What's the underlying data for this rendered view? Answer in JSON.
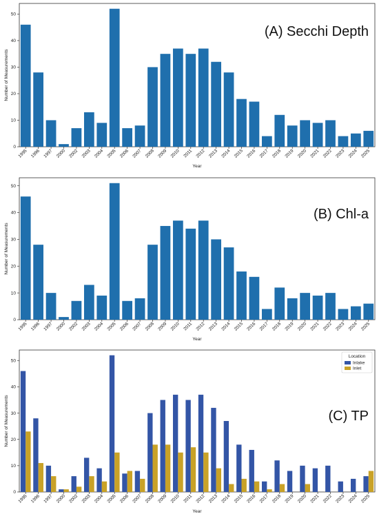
{
  "chart_data": [
    {
      "type": "bar",
      "panel_label": "(A) Secchi Depth",
      "xlabel": "Year",
      "ylabel": "Number of Measurements",
      "ylim": [
        0,
        54
      ],
      "yticks": [
        0,
        10,
        20,
        30,
        40,
        50
      ],
      "grid": false,
      "categories": [
        "1995",
        "1996",
        "1997",
        "2000",
        "2002",
        "2003",
        "2004",
        "2005",
        "2006",
        "2007",
        "2008",
        "2009",
        "2010",
        "2011",
        "2012",
        "2013",
        "2014",
        "2015",
        "2016",
        "2017",
        "2018",
        "2019",
        "2020",
        "2021",
        "2022",
        "2023",
        "2024",
        "2025"
      ],
      "series": [
        {
          "values": [
            46,
            28,
            10,
            1,
            7,
            13,
            9,
            52,
            7,
            8,
            30,
            35,
            37,
            35,
            37,
            32,
            28,
            18,
            17,
            4,
            12,
            8,
            10,
            9,
            10,
            4,
            5,
            6
          ],
          "color": "#1f6fad"
        }
      ]
    },
    {
      "type": "bar",
      "panel_label": "(B) Chl-a",
      "xlabel": "Year",
      "ylabel": "Number of Measurements",
      "ylim": [
        0,
        53
      ],
      "yticks": [
        0,
        10,
        20,
        30,
        40,
        50
      ],
      "grid": false,
      "categories": [
        "1995",
        "1996",
        "1997",
        "2000",
        "2002",
        "2003",
        "2004",
        "2005",
        "2006",
        "2007",
        "2008",
        "2009",
        "2010",
        "2011",
        "2012",
        "2013",
        "2014",
        "2015",
        "2016",
        "2017",
        "2018",
        "2019",
        "2020",
        "2021",
        "2022",
        "2023",
        "2024",
        "2025"
      ],
      "series": [
        {
          "values": [
            46,
            28,
            10,
            1,
            7,
            13,
            9,
            51,
            7,
            8,
            28,
            35,
            37,
            34,
            37,
            30,
            27,
            18,
            16,
            4,
            12,
            8,
            10,
            9,
            10,
            4,
            5,
            6
          ],
          "color": "#1f6fad"
        }
      ]
    },
    {
      "type": "bar",
      "panel_label": "(C) TP",
      "xlabel": "Year",
      "ylabel": "Number of Measurements",
      "ylim": [
        0,
        54
      ],
      "yticks": [
        0,
        10,
        20,
        30,
        40,
        50
      ],
      "grid": false,
      "legend": {
        "title": "Location",
        "placement": "top-right"
      },
      "categories": [
        "1995",
        "1996",
        "1997",
        "2000",
        "2002",
        "2003",
        "2004",
        "2005",
        "2006",
        "2007",
        "2008",
        "2009",
        "2010",
        "2011",
        "2012",
        "2013",
        "2014",
        "2015",
        "2016",
        "2017",
        "2018",
        "2019",
        "2020",
        "2021",
        "2022",
        "2023",
        "2024",
        "2025"
      ],
      "series": [
        {
          "name": "Inlake",
          "values": [
            46,
            28,
            10,
            1,
            6,
            13,
            9,
            52,
            7,
            8,
            30,
            35,
            37,
            35,
            37,
            32,
            27,
            18,
            16,
            4,
            12,
            8,
            10,
            9,
            10,
            4,
            5,
            6
          ],
          "color": "#3355a6"
        },
        {
          "name": "Inlet",
          "values": [
            23,
            11,
            6,
            1,
            2,
            6,
            4,
            15,
            8,
            5,
            18,
            18,
            15,
            17,
            15,
            9,
            3,
            5,
            4,
            1,
            3,
            0,
            3,
            0,
            0,
            0,
            0,
            8
          ],
          "color": "#c9a227"
        }
      ]
    }
  ]
}
